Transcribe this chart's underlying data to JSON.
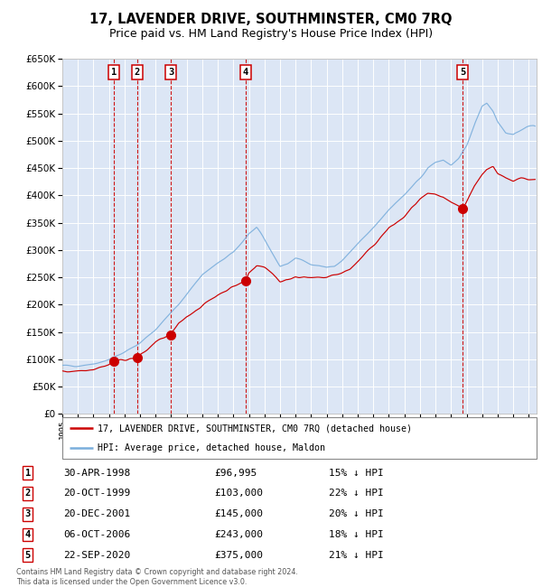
{
  "title": "17, LAVENDER DRIVE, SOUTHMINSTER, CM0 7RQ",
  "subtitle": "Price paid vs. HM Land Registry's House Price Index (HPI)",
  "ylim": [
    0,
    650000
  ],
  "yticks": [
    0,
    50000,
    100000,
    150000,
    200000,
    250000,
    300000,
    350000,
    400000,
    450000,
    500000,
    550000,
    600000,
    650000
  ],
  "xlim_start": 1995.0,
  "xlim_end": 2025.5,
  "xtick_years": [
    1995,
    1996,
    1997,
    1998,
    1999,
    2000,
    2001,
    2002,
    2003,
    2004,
    2005,
    2006,
    2007,
    2008,
    2009,
    2010,
    2011,
    2012,
    2013,
    2014,
    2015,
    2016,
    2017,
    2018,
    2019,
    2020,
    2021,
    2022,
    2023,
    2024,
    2025
  ],
  "background_color": "#dce6f5",
  "grid_color": "#ffffff",
  "line_color_red": "#cc0000",
  "line_color_blue": "#7aaedc",
  "dashed_line_color": "#cc0000",
  "sale_points": [
    {
      "num": 1,
      "year": 1998.33,
      "price": 96995
    },
    {
      "num": 2,
      "year": 1999.8,
      "price": 103000
    },
    {
      "num": 3,
      "year": 2001.97,
      "price": 145000
    },
    {
      "num": 4,
      "year": 2006.77,
      "price": 243000
    },
    {
      "num": 5,
      "year": 2020.73,
      "price": 375000
    }
  ],
  "legend_entries": [
    "17, LAVENDER DRIVE, SOUTHMINSTER, CM0 7RQ (detached house)",
    "HPI: Average price, detached house, Maldon"
  ],
  "table_rows": [
    {
      "num": 1,
      "date": "30-APR-1998",
      "price": "£96,995",
      "hpi": "15% ↓ HPI"
    },
    {
      "num": 2,
      "date": "20-OCT-1999",
      "price": "£103,000",
      "hpi": "22% ↓ HPI"
    },
    {
      "num": 3,
      "date": "20-DEC-2001",
      "price": "£145,000",
      "hpi": "20% ↓ HPI"
    },
    {
      "num": 4,
      "date": "06-OCT-2006",
      "price": "£243,000",
      "hpi": "18% ↓ HPI"
    },
    {
      "num": 5,
      "date": "22-SEP-2020",
      "price": "£375,000",
      "hpi": "21% ↓ HPI"
    }
  ],
  "footer": "Contains HM Land Registry data © Crown copyright and database right 2024.\nThis data is licensed under the Open Government Licence v3.0.",
  "title_fontsize": 10.5,
  "subtitle_fontsize": 9
}
